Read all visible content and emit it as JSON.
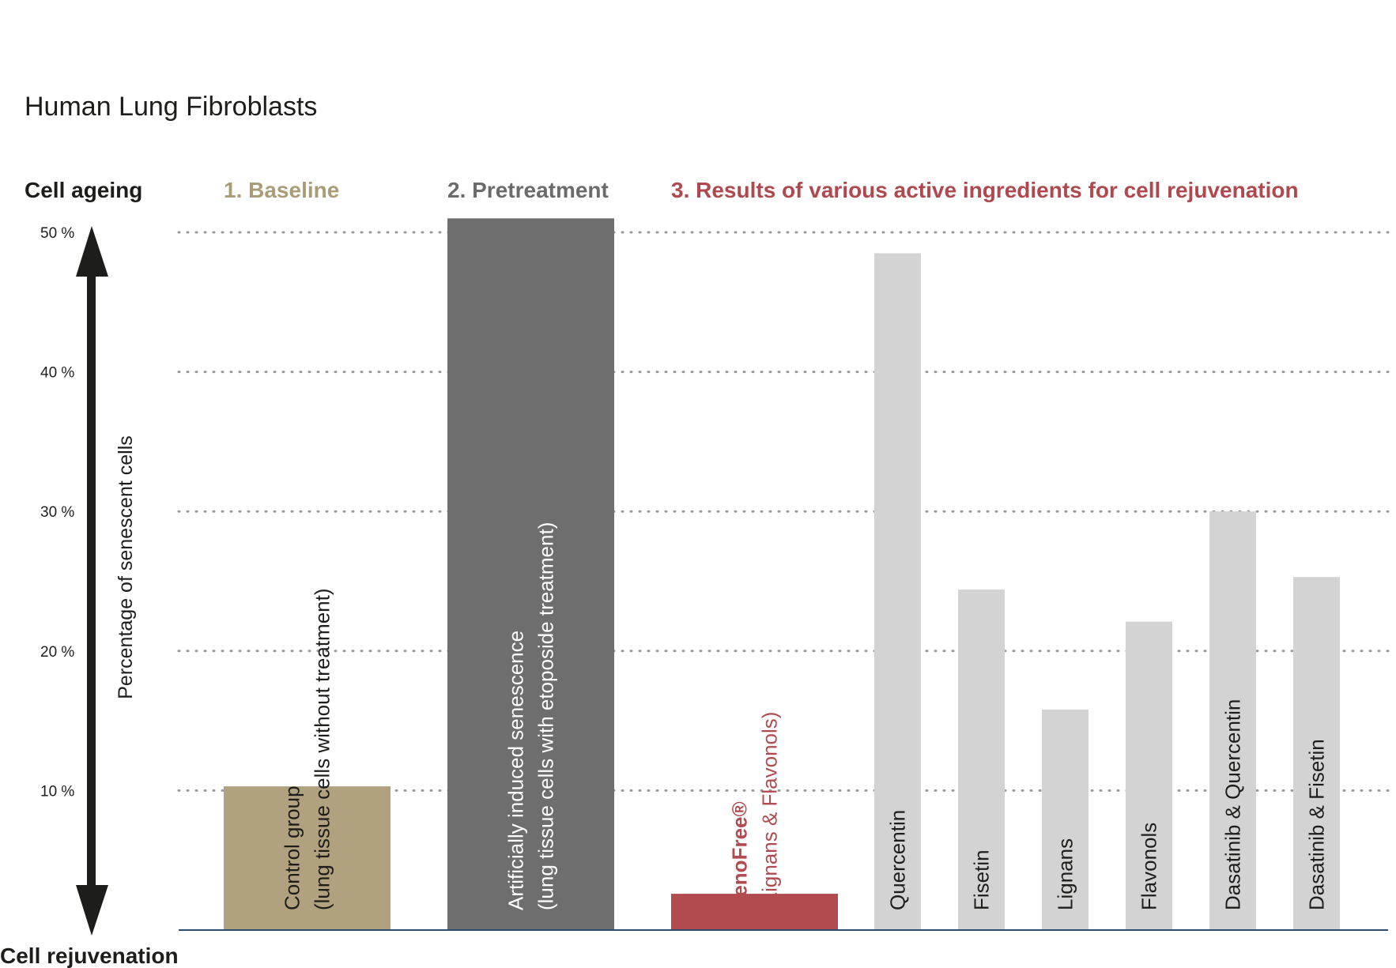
{
  "title": "Human Lung Fibroblasts",
  "axis_top_label": "Cell ageing",
  "axis_bottom_label": "Cell rejuvenation",
  "ylabel": "Percentage of senescent cells",
  "sections": [
    {
      "label": "1. Baseline",
      "color": "#ab9c78"
    },
    {
      "label": "2. Pretreatment",
      "color": "#6c6b6b"
    },
    {
      "label": "3. Results of various active ingredients for cell rejuvenation",
      "color": "#b0494f"
    }
  ],
  "colors": {
    "baseline": "#b1a27f",
    "pretreatment": "#6f6e6f",
    "senofree": "#b14b50",
    "others": "#d3d3d3",
    "text_dark": "#1d1d1b",
    "text_light": "#ffffff",
    "text_red": "#b14b50",
    "arrow": "#1d1d1b"
  },
  "chart_data": {
    "type": "bar",
    "ylim": [
      0,
      50
    ],
    "yticks": [
      {
        "value": 10,
        "label": "10 %"
      },
      {
        "value": 20,
        "label": "20 %"
      },
      {
        "value": 30,
        "label": "30 %"
      },
      {
        "value": 40,
        "label": "40 %"
      },
      {
        "value": 50,
        "label": "50 %"
      }
    ],
    "grid": true,
    "bars": [
      {
        "name": "control",
        "label_lines": [
          "Control group",
          "(lung tissue cells without treatment)"
        ],
        "value": 10.3,
        "color_key": "baseline",
        "text_key": "text_dark"
      },
      {
        "name": "pretreatment",
        "label_lines": [
          "Artificially induced senescence",
          "(lung tissue cells with etoposide treatment)"
        ],
        "value": 51,
        "color_key": "pretreatment",
        "text_key": "text_light"
      },
      {
        "name": "senofree",
        "label_lines": [
          "SenoFree®",
          "(Lignans & Flavonols)"
        ],
        "value": 2.6,
        "color_key": "senofree",
        "text_key": "text_red",
        "bold_first": true
      },
      {
        "name": "quercentin",
        "label_lines": [
          "Quercentin"
        ],
        "value": 48.5,
        "color_key": "others",
        "text_key": "text_dark"
      },
      {
        "name": "fisetin",
        "label_lines": [
          "Fisetin"
        ],
        "value": 24.4,
        "color_key": "others",
        "text_key": "text_dark"
      },
      {
        "name": "lignans",
        "label_lines": [
          "Lignans"
        ],
        "value": 15.8,
        "color_key": "others",
        "text_key": "text_dark"
      },
      {
        "name": "flavonols",
        "label_lines": [
          "Flavonols"
        ],
        "value": 22.1,
        "color_key": "others",
        "text_key": "text_dark"
      },
      {
        "name": "dasatinib-quercentin",
        "label_lines": [
          "Dasatinib & Quercentin"
        ],
        "value": 30,
        "color_key": "others",
        "text_key": "text_dark"
      },
      {
        "name": "dasatinib-fisetin",
        "label_lines": [
          "Dasatinib & Fisetin"
        ],
        "value": 25.3,
        "color_key": "others",
        "text_key": "text_dark"
      }
    ]
  }
}
